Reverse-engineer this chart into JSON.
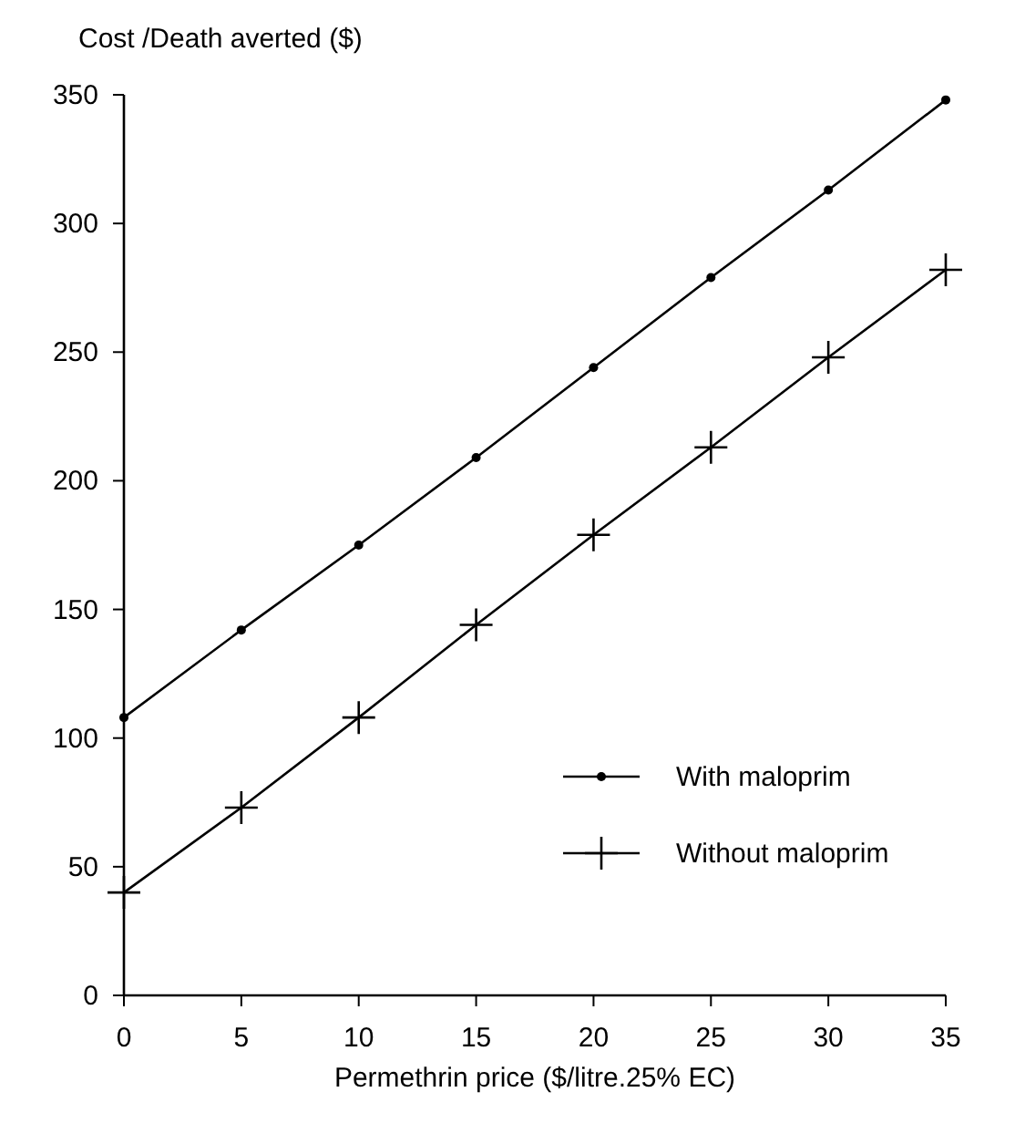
{
  "chart_data": {
    "type": "line",
    "ylabel": "Cost /Death averted ($)",
    "xlabel": "Permethrin price ($/litre.25% EC)",
    "x": [
      0,
      5,
      10,
      15,
      20,
      25,
      30,
      35
    ],
    "series": [
      {
        "name": "With maloprim",
        "color": "#000000",
        "marker": "circle",
        "values": [
          108,
          142,
          175,
          209,
          244,
          279,
          313,
          348
        ]
      },
      {
        "name": "Without maloprim",
        "color": "#000000",
        "marker": "cross",
        "values": [
          40,
          73,
          108,
          144,
          179,
          213,
          248,
          282
        ]
      }
    ],
    "xlim": [
      0,
      35
    ],
    "xticks": [
      0,
      5,
      10,
      15,
      20,
      25,
      30,
      35
    ],
    "ylim": [
      0,
      350
    ],
    "yticks": [
      0,
      50,
      100,
      150,
      200,
      250,
      300,
      350
    ],
    "grid": false,
    "legend": "bottom right",
    "line_style": "solid"
  }
}
